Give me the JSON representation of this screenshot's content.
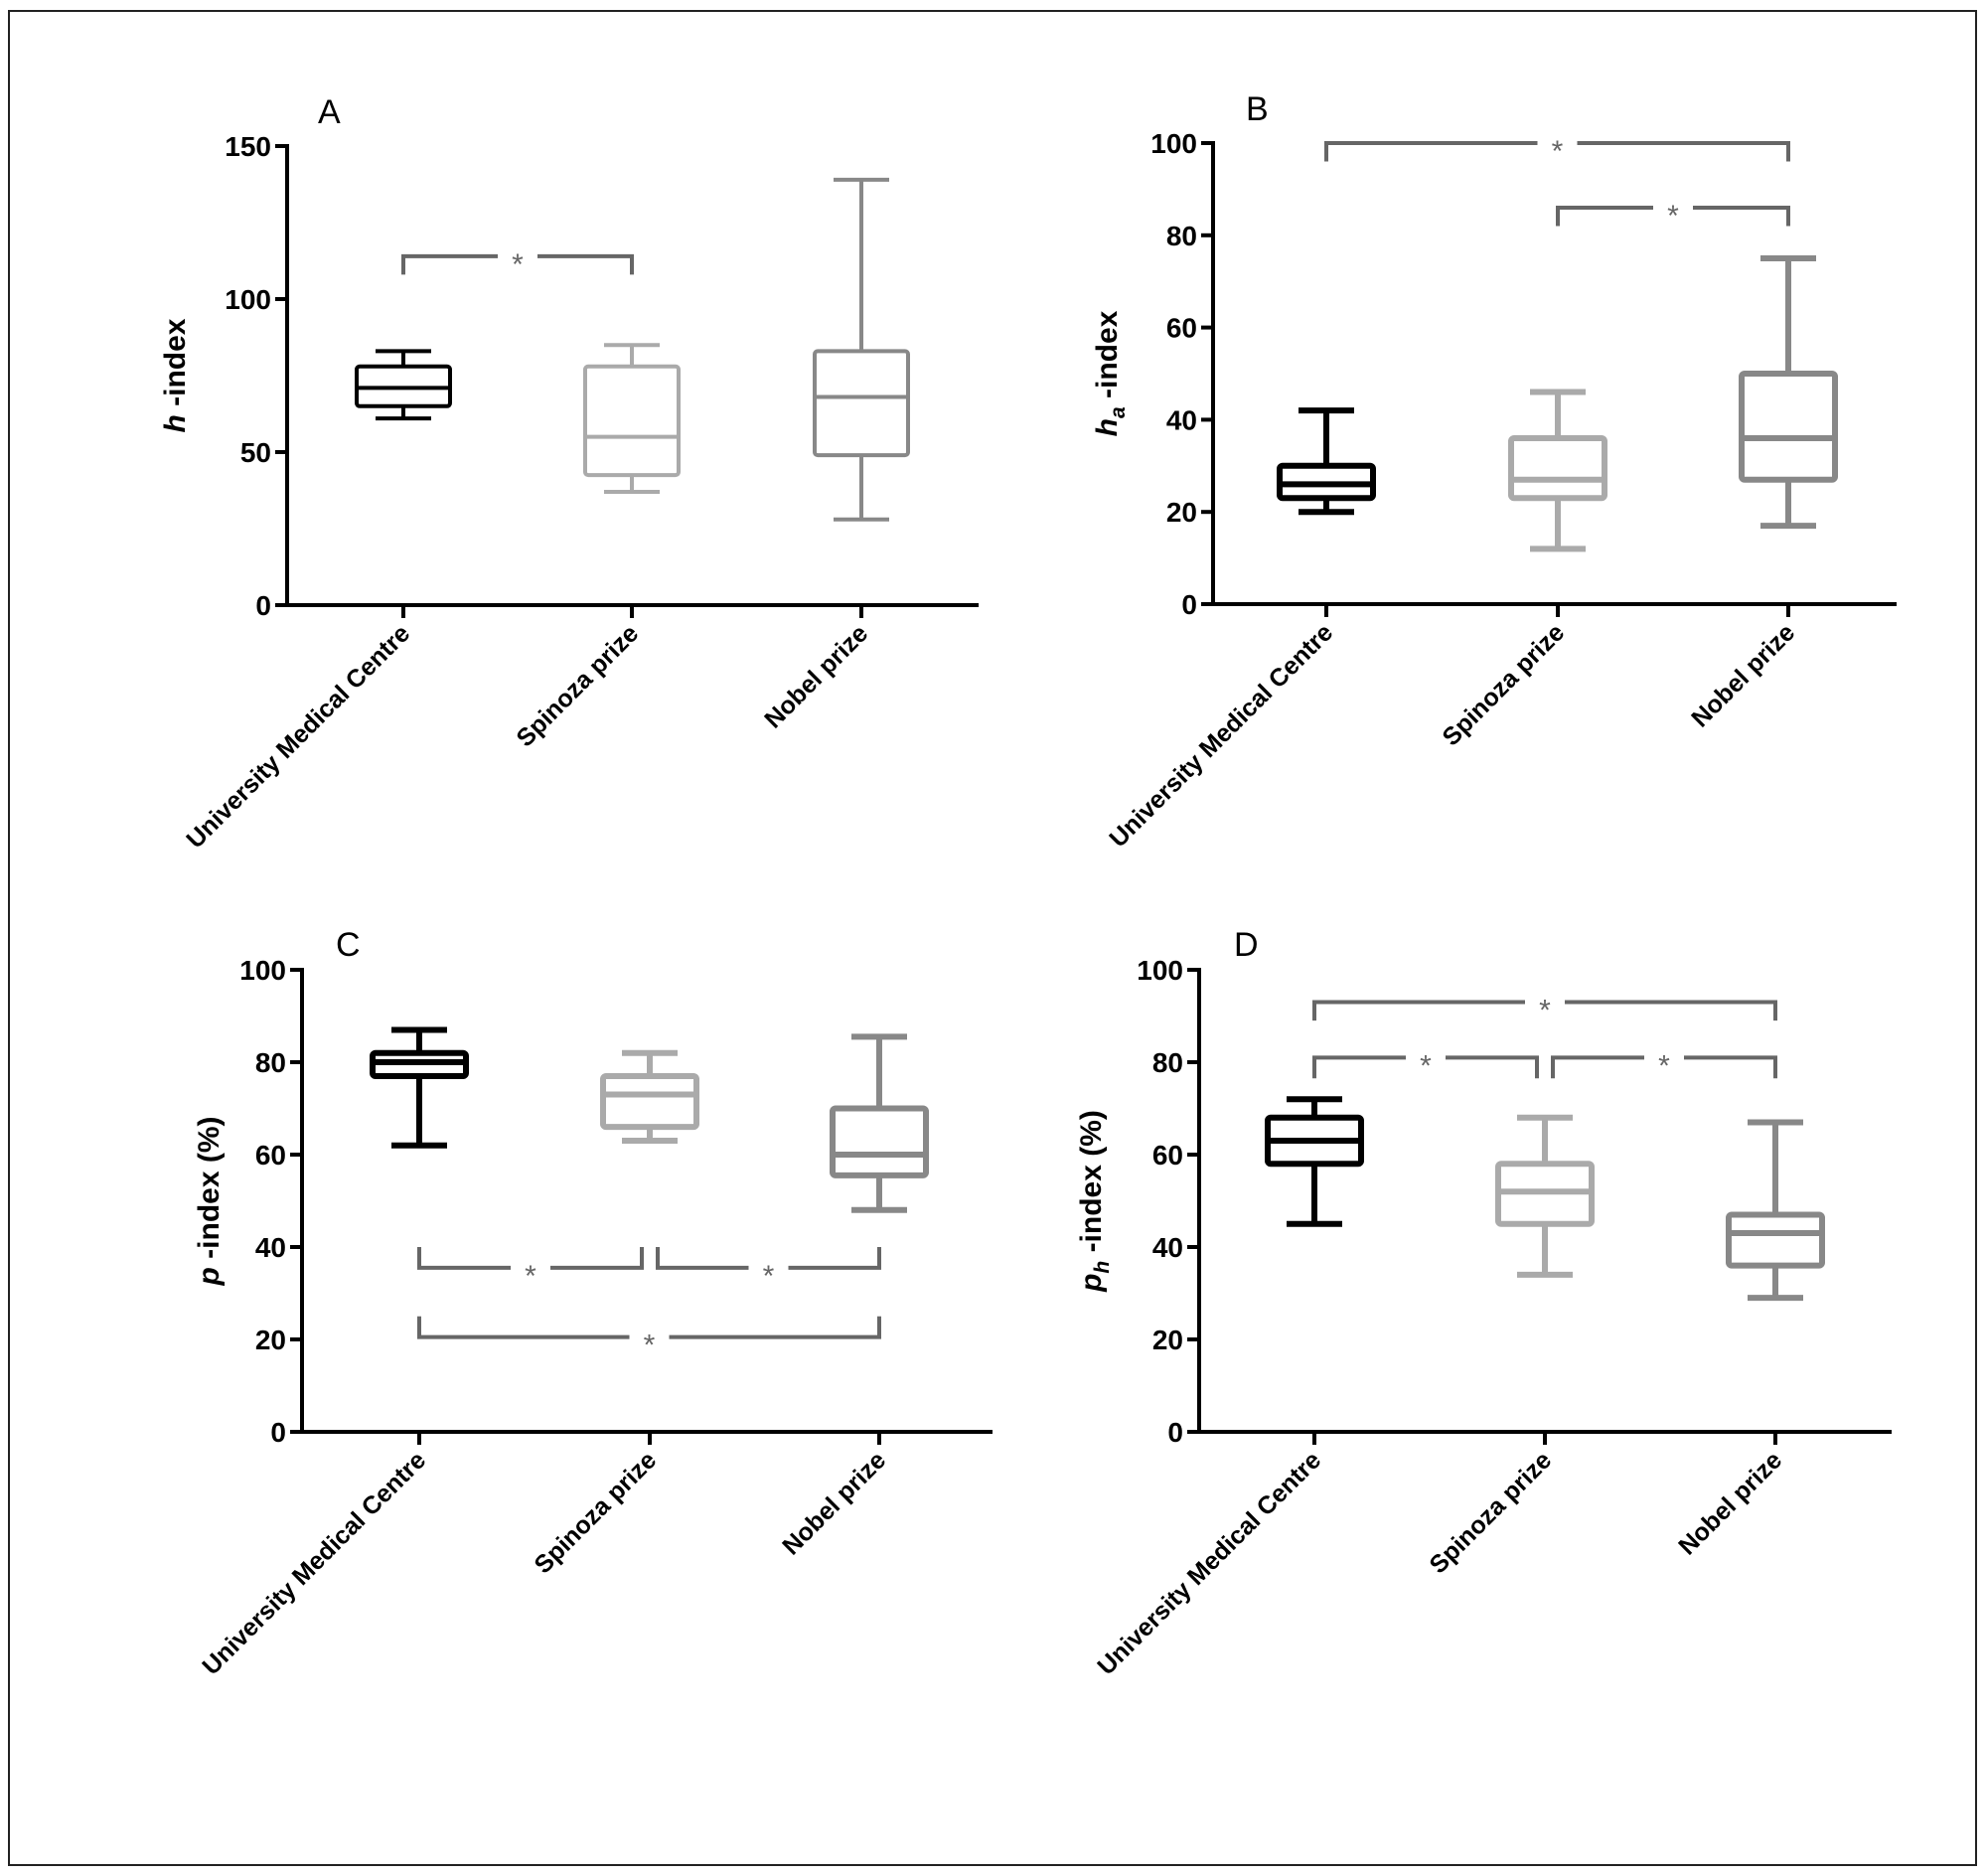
{
  "figure": {
    "border": true
  },
  "chart_data": [
    {
      "type": "box",
      "panel": "A",
      "title": "",
      "ylabel_italic": "h",
      "ylabel_sub": "",
      "ylabel_rest": " -index",
      "ylim": [
        0,
        150
      ],
      "yticks": [
        0,
        50,
        100,
        150
      ],
      "categories": [
        "University Medical Centre",
        "Spinoza prize",
        "Nobel prize"
      ],
      "series": [
        {
          "name": "University Medical Centre",
          "color": "#000000",
          "min": 61,
          "q1": 65,
          "median": 71,
          "q3": 78,
          "max": 83
        },
        {
          "name": "Spinoza prize",
          "color": "#aaaaaa",
          "min": 37,
          "q1": 42.5,
          "median": 55,
          "q3": 78,
          "max": 85
        },
        {
          "name": "Nobel prize",
          "color": "#888888",
          "min": 28,
          "q1": 49,
          "median": 68,
          "q3": 83,
          "max": 139
        }
      ],
      "significance": [
        {
          "from": 0,
          "to": 1,
          "y": 114,
          "arm_to": 108,
          "label": "*"
        }
      ]
    },
    {
      "type": "box",
      "panel": "B",
      "title": "",
      "ylabel_italic": "h",
      "ylabel_sub": "a",
      "ylabel_rest": " -index",
      "ylim": [
        0,
        100
      ],
      "yticks": [
        0,
        20,
        40,
        60,
        80,
        100
      ],
      "categories": [
        "University Medical Centre",
        "Spinoza prize",
        "Nobel prize"
      ],
      "series": [
        {
          "name": "University Medical Centre",
          "color": "#000000",
          "min": 20,
          "q1": 23,
          "median": 26,
          "q3": 30,
          "max": 42
        },
        {
          "name": "Spinoza prize",
          "color": "#aaaaaa",
          "min": 12,
          "q1": 23,
          "median": 27,
          "q3": 36,
          "max": 46
        },
        {
          "name": "Nobel prize",
          "color": "#888888",
          "min": 17,
          "q1": 27,
          "median": 36,
          "q3": 50,
          "max": 75
        }
      ],
      "significance": [
        {
          "from": 0,
          "to": 2,
          "y": 100,
          "arm_to": 96,
          "label": "*"
        },
        {
          "from": 1,
          "to": 2,
          "y": 86,
          "arm_to": 82,
          "label": "*"
        }
      ]
    },
    {
      "type": "box",
      "panel": "C",
      "title": "",
      "ylabel_italic": "p",
      "ylabel_sub": "",
      "ylabel_rest": " -index (%)",
      "ylim": [
        0,
        100
      ],
      "yticks": [
        0,
        20,
        40,
        60,
        80,
        100
      ],
      "categories": [
        "University Medical Centre",
        "Spinoza prize",
        "Nobel prize"
      ],
      "series": [
        {
          "name": "University Medical Centre",
          "color": "#000000",
          "min": 62,
          "q1": 77,
          "median": 80,
          "q3": 82,
          "max": 87
        },
        {
          "name": "Spinoza prize",
          "color": "#aaaaaa",
          "min": 63,
          "q1": 66,
          "median": 73,
          "q3": 77,
          "max": 82
        },
        {
          "name": "Nobel prize",
          "color": "#888888",
          "min": 48,
          "q1": 55.5,
          "median": 60,
          "q3": 70,
          "max": 85.5
        }
      ],
      "significance": [
        {
          "from": 0,
          "to": 1,
          "y": 35.5,
          "arm_to": 40,
          "label": "*"
        },
        {
          "from": 1,
          "to": 2,
          "y": 35.5,
          "arm_to": 40,
          "label": "*"
        },
        {
          "from": 0,
          "to": 2,
          "y": 20.5,
          "arm_to": 25,
          "label": "*"
        }
      ]
    },
    {
      "type": "box",
      "panel": "D",
      "title": "",
      "ylabel_italic": "p",
      "ylabel_sub": "h",
      "ylabel_rest": " -index (%)",
      "ylim": [
        0,
        100
      ],
      "yticks": [
        0,
        20,
        40,
        60,
        80,
        100
      ],
      "categories": [
        "University Medical Centre",
        "Spinoza prize",
        "Nobel prize"
      ],
      "series": [
        {
          "name": "University Medical Centre",
          "color": "#000000",
          "min": 45,
          "q1": 58,
          "median": 63,
          "q3": 68,
          "max": 72
        },
        {
          "name": "Spinoza prize",
          "color": "#aaaaaa",
          "min": 34,
          "q1": 45,
          "median": 52,
          "q3": 58,
          "max": 68
        },
        {
          "name": "Nobel prize",
          "color": "#888888",
          "min": 29,
          "q1": 36,
          "median": 43,
          "q3": 47,
          "max": 67
        }
      ],
      "significance": [
        {
          "from": 0,
          "to": 2,
          "y": 93,
          "arm_to": 89,
          "label": "*"
        },
        {
          "from": 0,
          "to": 1,
          "y": 81,
          "arm_to": 76.5,
          "label": "*"
        },
        {
          "from": 1,
          "to": 2,
          "y": 81,
          "arm_to": 76.5,
          "label": "*"
        }
      ]
    }
  ],
  "colors": {
    "bracket": "#666666",
    "axis": "#000000"
  }
}
